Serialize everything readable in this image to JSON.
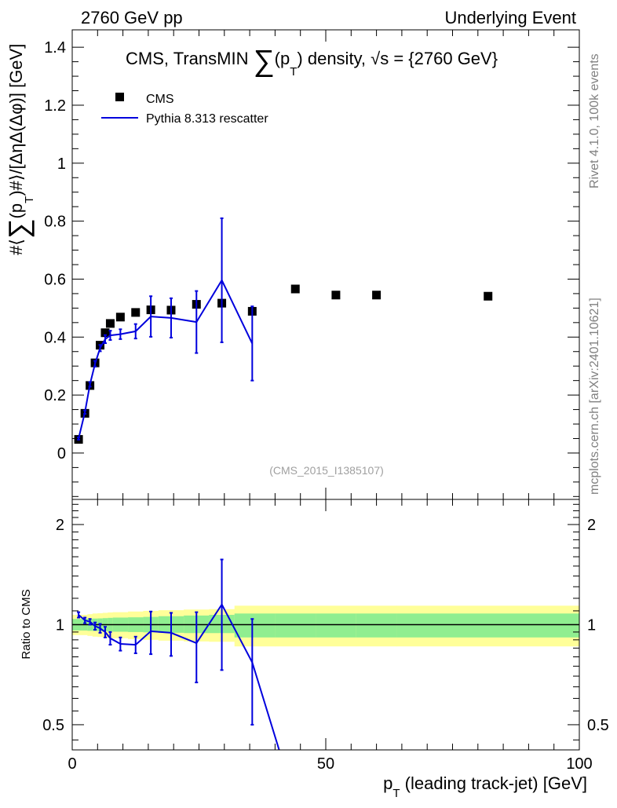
{
  "header": {
    "left": "2760 GeV pp",
    "right": "Underlying Event"
  },
  "side": {
    "rivet": "Rivet 4.1.0,  100k events",
    "mcplots": "mcplots.cern.ch [arXiv:2401.10621]"
  },
  "chart_data": [
    {
      "type": "scatter",
      "panel": "main",
      "title": "CMS, TransMIN ∑(p_T) density, √s = {2760 GeV}",
      "title_parts": {
        "prefix": "CMS, TransMIN ",
        "sigma": "∑",
        "p": "(p",
        "sub": "T",
        "close": ")",
        "suffix": " density, √s = {2760 GeV}"
      },
      "ylabel": "#⟨∑(p_T)#⟩/[ΔηΔ(Δφ)] [GeV]",
      "ylabel_parts": {
        "prefix": "#⟨",
        "sigma": "∑",
        "p": "(p",
        "sub": "T",
        "suffix": ")#⟩/[ΔηΔ(Δφ)] [GeV]"
      },
      "xlim": [
        0,
        100
      ],
      "ylim": [
        -0.16,
        1.46
      ],
      "yticks": [
        0,
        0.2,
        0.4,
        0.6,
        0.8,
        1,
        1.2,
        1.4
      ],
      "ytick_labels": [
        "0",
        "0.2",
        "0.4",
        "0.6",
        "0.8",
        "1",
        "1.2",
        "1.4"
      ],
      "watermark": "(CMS_2015_I1385107)",
      "legend": {
        "placement": "top-left",
        "entries": [
          "CMS",
          "Pythia 8.313 rescatter"
        ]
      },
      "series": [
        {
          "name": "CMS",
          "style": "markers",
          "color": "#000000",
          "x": [
            1.25,
            2.5,
            3.5,
            4.5,
            5.5,
            6.5,
            7.5,
            9.5,
            12.5,
            15.5,
            19.5,
            24.5,
            29.5,
            35.5,
            44,
            52,
            60,
            82
          ],
          "y": [
            0.047,
            0.137,
            0.233,
            0.311,
            0.372,
            0.415,
            0.447,
            0.469,
            0.485,
            0.494,
            0.493,
            0.513,
            0.517,
            0.489,
            0.566,
            0.545,
            0.545,
            0.541
          ]
        },
        {
          "name": "Pythia 8.313 rescatter",
          "style": "line",
          "color": "#0000dd",
          "x": [
            1.25,
            2.5,
            3.5,
            4.5,
            5.5,
            6.5,
            7.5,
            9.5,
            12.5,
            15.5,
            19.5,
            24.5,
            29.5,
            35.5
          ],
          "y": [
            0.05,
            0.141,
            0.237,
            0.308,
            0.362,
            0.393,
            0.406,
            0.41,
            0.42,
            0.471,
            0.466,
            0.452,
            0.596,
            0.378
          ],
          "yerr": [
            0.004,
            0.006,
            0.008,
            0.01,
            0.011,
            0.014,
            0.016,
            0.017,
            0.025,
            0.07,
            0.068,
            0.107,
            0.214,
            0.128
          ]
        }
      ]
    },
    {
      "type": "line",
      "panel": "ratio",
      "ylabel": "Ratio to CMS",
      "xlabel": "p_T (leading track-jet) [GeV]",
      "xlabel_parts": {
        "p": "p",
        "sub": "T",
        "suffix": " (leading track-jet) [GeV]"
      },
      "xlim": [
        0,
        100
      ],
      "xticks": [
        0,
        50,
        100
      ],
      "xtick_labels": [
        "0",
        "50",
        "100"
      ],
      "ylim": [
        0.42,
        2.38
      ],
      "yscale": "log",
      "yticks": [
        0.5,
        1,
        2
      ],
      "ytick_labels": [
        "0.5",
        "1",
        "2"
      ],
      "bands": {
        "edges": [
          0,
          2,
          3,
          4,
          5,
          6,
          7,
          8,
          11,
          14,
          17,
          22,
          27,
          32,
          40,
          48,
          56,
          64,
          100
        ],
        "stat_lo": [
          0.96,
          0.96,
          0.958,
          0.957,
          0.956,
          0.955,
          0.954,
          0.952,
          0.95,
          0.948,
          0.945,
          0.943,
          0.943,
          0.915,
          0.915,
          0.915,
          0.915,
          0.915
        ],
        "stat_hi": [
          1.04,
          1.04,
          1.042,
          1.043,
          1.044,
          1.046,
          1.048,
          1.05,
          1.052,
          1.055,
          1.06,
          1.065,
          1.07,
          1.08,
          1.08,
          1.08,
          1.08,
          1.08
        ],
        "tot_lo": [
          0.93,
          0.93,
          0.925,
          0.92,
          0.918,
          0.915,
          0.912,
          0.91,
          0.905,
          0.9,
          0.895,
          0.89,
          0.888,
          0.86,
          0.86,
          0.86,
          0.86,
          0.86
        ],
        "tot_hi": [
          1.07,
          1.07,
          1.075,
          1.08,
          1.082,
          1.085,
          1.088,
          1.09,
          1.095,
          1.1,
          1.105,
          1.11,
          1.113,
          1.14,
          1.14,
          1.14,
          1.14,
          1.14
        ],
        "stat_color": "#90ee90",
        "tot_color": "#ffff99"
      },
      "series": [
        {
          "name": "Pythia 8.313 rescatter / CMS",
          "color": "#0000dd",
          "x": [
            1.25,
            2.5,
            3.5,
            4.5,
            5.5,
            6.5,
            7.5,
            9.5,
            12.5,
            15.5,
            19.5,
            24.5,
            29.5,
            35.5,
            40.8
          ],
          "y": [
            1.07,
            1.03,
            1.02,
            0.99,
            0.975,
            0.95,
            0.91,
            0.875,
            0.87,
            0.955,
            0.945,
            0.88,
            1.15,
            0.77,
            0.42
          ],
          "yerr": [
            0.02,
            0.02,
            0.02,
            0.025,
            0.03,
            0.035,
            0.04,
            0.04,
            0.05,
            0.14,
            0.14,
            0.21,
            0.42,
            0.27,
            0
          ],
          "show_err": [
            true,
            true,
            true,
            true,
            true,
            true,
            true,
            true,
            true,
            true,
            true,
            true,
            true,
            true,
            false
          ]
        }
      ]
    }
  ]
}
